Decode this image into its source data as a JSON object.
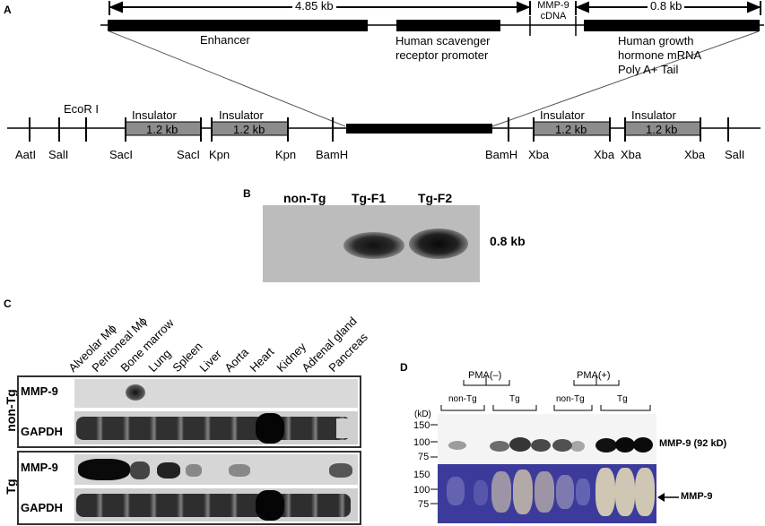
{
  "panel_a": {
    "letter": "A",
    "top_dims": {
      "left": "4.85 kb",
      "mid": "MMP-9",
      "mid2": "cDNA",
      "right": "0.8 kb"
    },
    "element_labels": {
      "enhancer": "Enhancer",
      "promoter_line1": "Human scavenger",
      "promoter_line2": "receptor promoter",
      "polya_line1": "Human growth",
      "polya_line2": "hormone mRNA",
      "polya_line3": "Poly A+ Tail"
    },
    "ecor": "EcoR I",
    "insulator_label": "Insulator",
    "insulator_size": "1.2 kb",
    "sites": [
      "AatI",
      "SalI",
      "SacI",
      "SacI",
      "Kpn",
      "Kpn",
      "BamH",
      "BamH",
      "Xba",
      "Xba",
      "Xba",
      "Xba",
      "SalI"
    ]
  },
  "panel_b": {
    "letter": "B",
    "lanes": [
      "non-Tg",
      "Tg-F1",
      "Tg-F2"
    ],
    "band_label": "0.8 kb"
  },
  "panel_c": {
    "letter": "C",
    "tissues": [
      "Alveolar Mϕ",
      "Peritoneal Mϕ",
      "Bone marrow",
      "Lung",
      "Spleen",
      "Liver",
      "Aorta",
      "Heart",
      "Kidney",
      "Adrenal gland",
      "Pancreas"
    ],
    "group_non_tg": "non-Tg",
    "group_tg": "Tg",
    "row_mmp9": "MMP-9",
    "row_gapdh": "GAPDH"
  },
  "panel_d": {
    "letter": "D",
    "pma_minus": "PMA(–)",
    "pma_plus": "PMA(+)",
    "non_tg": "non-Tg",
    "tg": "Tg",
    "kd_unit": "(kD)",
    "top_ticks": [
      "150",
      "100",
      "75"
    ],
    "bottom_ticks": [
      "150",
      "100",
      "75"
    ],
    "top_band_label": "MMP-9 (92 kD)",
    "bottom_band_label": "MMP-9"
  }
}
